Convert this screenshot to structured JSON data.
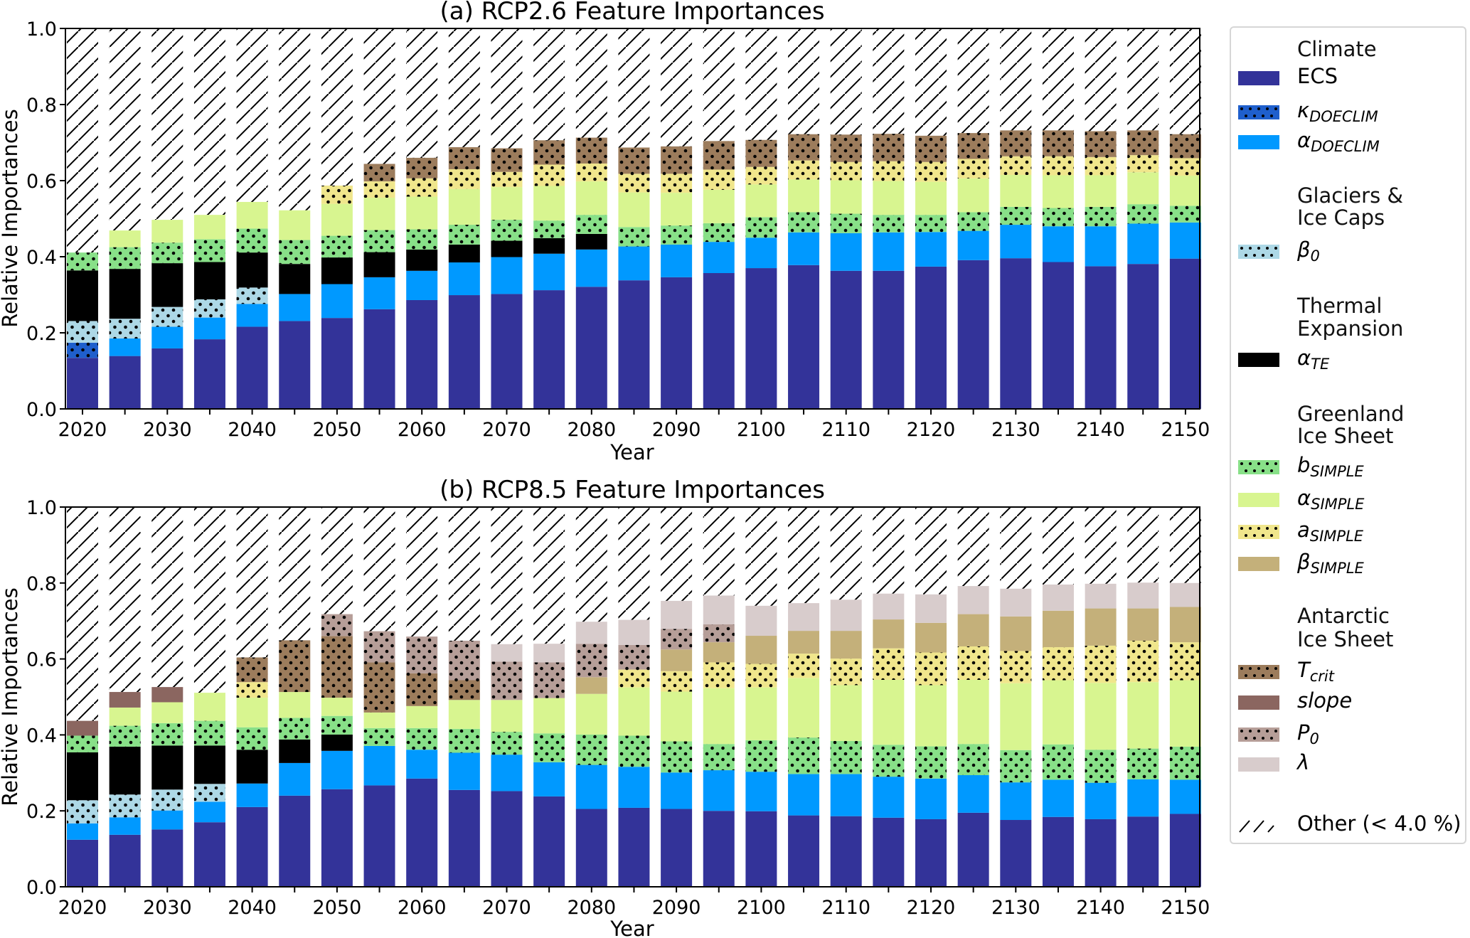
{
  "chart_data": [
    {
      "type": "bar",
      "stacked": true,
      "title": "(a) RCP2.6 Feature Importances",
      "xlabel": "Year",
      "ylabel": "Relative Importances",
      "ylim": [
        0,
        1.0
      ],
      "yticks": [
        "0.0",
        "0.2",
        "0.4",
        "0.6",
        "0.8",
        "1.0"
      ],
      "xticks": [
        "2020",
        "2030",
        "2040",
        "2050",
        "2060",
        "2070",
        "2080",
        "2090",
        "2100",
        "2110",
        "2120",
        "2130",
        "2140",
        "2150"
      ],
      "remainder_label": "Other (< 4.0 %)",
      "categories": [
        2020,
        2025,
        2030,
        2035,
        2040,
        2045,
        2050,
        2055,
        2060,
        2065,
        2070,
        2075,
        2080,
        2085,
        2090,
        2095,
        2100,
        2105,
        2110,
        2115,
        2120,
        2125,
        2130,
        2135,
        2140,
        2145,
        2150
      ],
      "series": [
        {
          "key": "ECS",
          "values": [
            0.134,
            0.139,
            0.159,
            0.183,
            0.216,
            0.231,
            0.239,
            0.262,
            0.286,
            0.299,
            0.302,
            0.312,
            0.321,
            0.338,
            0.346,
            0.357,
            0.37,
            0.378,
            0.363,
            0.363,
            0.374,
            0.391,
            0.396,
            0.386,
            0.375,
            0.381,
            0.395
          ]
        },
        {
          "key": "kappa_DOECLIM",
          "values": [
            0.04,
            0,
            0,
            0,
            0,
            0,
            0,
            0,
            0,
            0,
            0,
            0,
            0,
            0,
            0,
            0,
            0,
            0,
            0,
            0,
            0,
            0,
            0,
            0,
            0,
            0,
            0
          ]
        },
        {
          "key": "alpha_DOECLIM",
          "values": [
            0,
            0.046,
            0.057,
            0.057,
            0.06,
            0.071,
            0.089,
            0.084,
            0.077,
            0.086,
            0.097,
            0.096,
            0.098,
            0.089,
            0.086,
            0.082,
            0.08,
            0.086,
            0.099,
            0.101,
            0.091,
            0.077,
            0.088,
            0.094,
            0.105,
            0.106,
            0.095
          ]
        },
        {
          "key": "beta_0",
          "values": [
            0.057,
            0.052,
            0.052,
            0.048,
            0.043,
            0,
            0,
            0,
            0,
            0,
            0,
            0,
            0,
            0,
            0,
            0,
            0,
            0,
            0,
            0,
            0,
            0,
            0,
            0,
            0,
            0,
            0
          ]
        },
        {
          "key": "alpha_TE",
          "values": [
            0.133,
            0.131,
            0.115,
            0.098,
            0.092,
            0.079,
            0.07,
            0.066,
            0.056,
            0.047,
            0.043,
            0.041,
            0.041,
            0,
            0,
            0,
            0,
            0,
            0,
            0,
            0,
            0,
            0,
            0,
            0,
            0,
            0
          ]
        },
        {
          "key": "b_SIMPLE",
          "values": [
            0.047,
            0.057,
            0.054,
            0.06,
            0.063,
            0.063,
            0.057,
            0.058,
            0.053,
            0.052,
            0.055,
            0.046,
            0.05,
            0.051,
            0.05,
            0.049,
            0.054,
            0.053,
            0.051,
            0.046,
            0.045,
            0.049,
            0.047,
            0.048,
            0.051,
            0.051,
            0.044
          ]
        },
        {
          "key": "alpha_SIMPLE",
          "values": [
            0,
            0.044,
            0.06,
            0.064,
            0.07,
            0.078,
            0.084,
            0.085,
            0.086,
            0.094,
            0.086,
            0.091,
            0.088,
            0.091,
            0.086,
            0.088,
            0.086,
            0.086,
            0.088,
            0.089,
            0.087,
            0.089,
            0.084,
            0.086,
            0.083,
            0.084,
            0.079
          ]
        },
        {
          "key": "a_SIMPLE",
          "values": [
            0,
            0,
            0,
            0,
            0,
            0,
            0.048,
            0.043,
            0.048,
            0.052,
            0.04,
            0.056,
            0.047,
            0.049,
            0.05,
            0.053,
            0.046,
            0.05,
            0.048,
            0.052,
            0.052,
            0.051,
            0.049,
            0.05,
            0.048,
            0.045,
            0.046
          ]
        },
        {
          "key": "beta_SIMPLE",
          "values": [
            0,
            0,
            0,
            0,
            0,
            0,
            0,
            0,
            0,
            0,
            0,
            0,
            0,
            0,
            0,
            0,
            0,
            0,
            0,
            0,
            0,
            0,
            0,
            0,
            0,
            0,
            0
          ]
        },
        {
          "key": "T_crit",
          "values": [
            0,
            0,
            0,
            0,
            0,
            0,
            0,
            0.046,
            0.054,
            0.058,
            0.062,
            0.064,
            0.068,
            0.069,
            0.072,
            0.075,
            0.071,
            0.069,
            0.072,
            0.072,
            0.069,
            0.068,
            0.068,
            0.068,
            0.068,
            0.065,
            0.063
          ]
        },
        {
          "key": "slope",
          "values": [
            0,
            0,
            0,
            0,
            0,
            0,
            0,
            0,
            0,
            0,
            0,
            0,
            0,
            0,
            0,
            0,
            0,
            0,
            0,
            0,
            0,
            0,
            0,
            0,
            0,
            0,
            0
          ]
        },
        {
          "key": "P_0",
          "values": [
            0,
            0,
            0,
            0,
            0,
            0,
            0,
            0,
            0,
            0,
            0,
            0,
            0,
            0,
            0,
            0,
            0,
            0,
            0,
            0,
            0,
            0,
            0,
            0,
            0,
            0,
            0
          ]
        },
        {
          "key": "lambda",
          "values": [
            0,
            0,
            0,
            0,
            0,
            0,
            0,
            0,
            0,
            0,
            0,
            0,
            0,
            0,
            0,
            0,
            0,
            0,
            0,
            0,
            0,
            0,
            0,
            0,
            0,
            0,
            0
          ]
        }
      ]
    },
    {
      "type": "bar",
      "stacked": true,
      "title": "(b) RCP8.5 Feature Importances",
      "xlabel": "Year",
      "ylabel": "Relative Importances",
      "ylim": [
        0,
        1.0
      ],
      "yticks": [
        "0.0",
        "0.2",
        "0.4",
        "0.6",
        "0.8",
        "1.0"
      ],
      "xticks": [
        "2020",
        "2030",
        "2040",
        "2050",
        "2060",
        "2070",
        "2080",
        "2090",
        "2100",
        "2110",
        "2120",
        "2130",
        "2140",
        "2150"
      ],
      "remainder_label": "Other (< 4.0 %)",
      "categories": [
        2020,
        2025,
        2030,
        2035,
        2040,
        2045,
        2050,
        2055,
        2060,
        2065,
        2070,
        2075,
        2080,
        2085,
        2090,
        2095,
        2100,
        2105,
        2110,
        2115,
        2120,
        2125,
        2130,
        2135,
        2140,
        2145,
        2150
      ],
      "series": [
        {
          "key": "ECS",
          "values": [
            0.124,
            0.137,
            0.151,
            0.17,
            0.21,
            0.24,
            0.257,
            0.267,
            0.285,
            0.255,
            0.252,
            0.238,
            0.205,
            0.208,
            0.205,
            0.2,
            0.199,
            0.188,
            0.186,
            0.182,
            0.178,
            0.195,
            0.176,
            0.184,
            0.178,
            0.185,
            0.192
          ]
        },
        {
          "key": "kappa_DOECLIM",
          "values": [
            0,
            0,
            0,
            0,
            0,
            0,
            0,
            0,
            0,
            0,
            0,
            0,
            0,
            0,
            0,
            0,
            0,
            0,
            0,
            0,
            0,
            0,
            0,
            0,
            0,
            0,
            0
          ]
        },
        {
          "key": "alpha_DOECLIM",
          "values": [
            0.043,
            0.046,
            0.05,
            0.054,
            0.062,
            0.086,
            0.101,
            0.104,
            0.076,
            0.098,
            0.096,
            0.09,
            0.116,
            0.108,
            0.096,
            0.107,
            0.104,
            0.109,
            0.111,
            0.108,
            0.107,
            0.099,
            0.099,
            0.098,
            0.096,
            0.098,
            0.09
          ]
        },
        {
          "key": "beta_0",
          "values": [
            0.061,
            0.06,
            0.055,
            0.047,
            0,
            0,
            0,
            0,
            0,
            0,
            0,
            0,
            0,
            0,
            0,
            0,
            0,
            0,
            0,
            0,
            0,
            0,
            0,
            0,
            0,
            0,
            0
          ]
        },
        {
          "key": "alpha_TE",
          "values": [
            0.126,
            0.126,
            0.116,
            0.101,
            0.089,
            0.062,
            0.043,
            0,
            0,
            0,
            0,
            0,
            0,
            0,
            0,
            0,
            0,
            0,
            0,
            0,
            0,
            0,
            0,
            0,
            0,
            0,
            0
          ]
        },
        {
          "key": "b_SIMPLE",
          "values": [
            0.044,
            0.055,
            0.059,
            0.065,
            0.059,
            0.057,
            0.049,
            0.047,
            0.057,
            0.063,
            0.06,
            0.076,
            0.08,
            0.082,
            0.082,
            0.069,
            0.083,
            0.096,
            0.087,
            0.084,
            0.085,
            0.082,
            0.085,
            0.093,
            0.087,
            0.081,
            0.087
          ]
        },
        {
          "key": "alpha_SIMPLE",
          "values": [
            0,
            0.048,
            0.055,
            0.074,
            0.078,
            0.068,
            0.048,
            0.041,
            0.058,
            0.076,
            0.084,
            0.093,
            0.107,
            0.127,
            0.131,
            0.147,
            0.139,
            0.157,
            0.147,
            0.171,
            0.161,
            0.169,
            0.176,
            0.169,
            0.176,
            0.175,
            0.175
          ]
        },
        {
          "key": "a_SIMPLE",
          "values": [
            0,
            0,
            0,
            0,
            0.041,
            0,
            0,
            0,
            0,
            0,
            0,
            0,
            0,
            0.047,
            0.054,
            0.068,
            0.062,
            0.064,
            0.07,
            0.083,
            0.086,
            0.088,
            0.085,
            0.087,
            0.098,
            0.109,
            0.1
          ]
        },
        {
          "key": "beta_SIMPLE",
          "values": [
            0,
            0,
            0,
            0,
            0,
            0,
            0,
            0,
            0,
            0,
            0,
            0,
            0.044,
            0,
            0.057,
            0.053,
            0.074,
            0.06,
            0.073,
            0.076,
            0.078,
            0.085,
            0.091,
            0.096,
            0.098,
            0.085,
            0.093
          ]
        },
        {
          "key": "T_crit",
          "values": [
            0,
            0,
            0,
            0,
            0.065,
            0.136,
            0.162,
            0.132,
            0.086,
            0.052,
            0,
            0,
            0,
            0,
            0,
            0,
            0,
            0,
            0,
            0,
            0,
            0,
            0,
            0,
            0,
            0,
            0
          ]
        },
        {
          "key": "slope",
          "values": [
            0.039,
            0.041,
            0.04,
            0,
            0,
            0,
            0,
            0,
            0,
            0,
            0,
            0,
            0,
            0,
            0,
            0,
            0,
            0,
            0,
            0,
            0,
            0,
            0,
            0,
            0,
            0,
            0
          ]
        },
        {
          "key": "P_0",
          "values": [
            0,
            0,
            0,
            0,
            0,
            0,
            0.058,
            0.082,
            0.097,
            0.104,
            0.101,
            0.094,
            0.088,
            0.065,
            0.054,
            0.047,
            0,
            0,
            0,
            0,
            0,
            0,
            0,
            0,
            0,
            0,
            0
          ]
        },
        {
          "key": "lambda",
          "values": [
            0,
            0,
            0,
            0,
            0,
            0,
            0,
            0,
            0,
            0,
            0.046,
            0.049,
            0.058,
            0.066,
            0.074,
            0.076,
            0.079,
            0.073,
            0.082,
            0.068,
            0.075,
            0.074,
            0.073,
            0.069,
            0.065,
            0.068,
            0.063
          ]
        }
      ]
    }
  ],
  "series_styles": {
    "ECS": {
      "color": "#333399",
      "dotted": false
    },
    "kappa_DOECLIM": {
      "color": "#1f5fcc",
      "dotted": true
    },
    "alpha_DOECLIM": {
      "color": "#0099ff",
      "dotted": false
    },
    "beta_0": {
      "color": "#add8e6",
      "dotted": true
    },
    "alpha_TE": {
      "color": "#000000",
      "dotted": false
    },
    "b_SIMPLE": {
      "color": "#88e088",
      "dotted": true
    },
    "alpha_SIMPLE": {
      "color": "#d8f590",
      "dotted": false
    },
    "a_SIMPLE": {
      "color": "#f0e68c",
      "dotted": true
    },
    "beta_SIMPLE": {
      "color": "#c4b07a",
      "dotted": false
    },
    "T_crit": {
      "color": "#9c7c5c",
      "dotted": true
    },
    "slope": {
      "color": "#8b6660",
      "dotted": false
    },
    "P_0": {
      "color": "#b69e98",
      "dotted": true
    },
    "lambda": {
      "color": "#d8cccc",
      "dotted": false
    }
  },
  "legend": {
    "placement": "right",
    "groups": [
      {
        "heading": [
          "Climate"
        ],
        "items": [
          {
            "key": "ECS",
            "label": "ECS",
            "sub": ""
          },
          {
            "key": "kappa_DOECLIM",
            "label": "κ",
            "sub": "DOECLIM"
          },
          {
            "key": "alpha_DOECLIM",
            "label": "α",
            "sub": "DOECLIM"
          }
        ]
      },
      {
        "heading": [
          "Glaciers &",
          "Ice Caps"
        ],
        "items": [
          {
            "key": "beta_0",
            "label": "β",
            "sub": "0"
          }
        ]
      },
      {
        "heading": [
          "Thermal",
          "Expansion"
        ],
        "items": [
          {
            "key": "alpha_TE",
            "label": "α",
            "sub": "TE"
          }
        ]
      },
      {
        "heading": [
          "Greenland",
          "Ice Sheet"
        ],
        "items": [
          {
            "key": "b_SIMPLE",
            "label": "b",
            "sub": "SIMPLE"
          },
          {
            "key": "alpha_SIMPLE",
            "label": "α",
            "sub": "SIMPLE"
          },
          {
            "key": "a_SIMPLE",
            "label": "a",
            "sub": "SIMPLE"
          },
          {
            "key": "beta_SIMPLE",
            "label": "β",
            "sub": "SIMPLE"
          }
        ]
      },
      {
        "heading": [
          "Antarctic",
          "Ice Sheet"
        ],
        "items": [
          {
            "key": "T_crit",
            "label": "T",
            "sub": "crit"
          },
          {
            "key": "slope",
            "label": "slope",
            "sub": ""
          },
          {
            "key": "P_0",
            "label": "P",
            "sub": "0"
          },
          {
            "key": "lambda",
            "label": "λ",
            "sub": ""
          }
        ]
      }
    ],
    "other_label": "Other (< 4.0 %)"
  }
}
